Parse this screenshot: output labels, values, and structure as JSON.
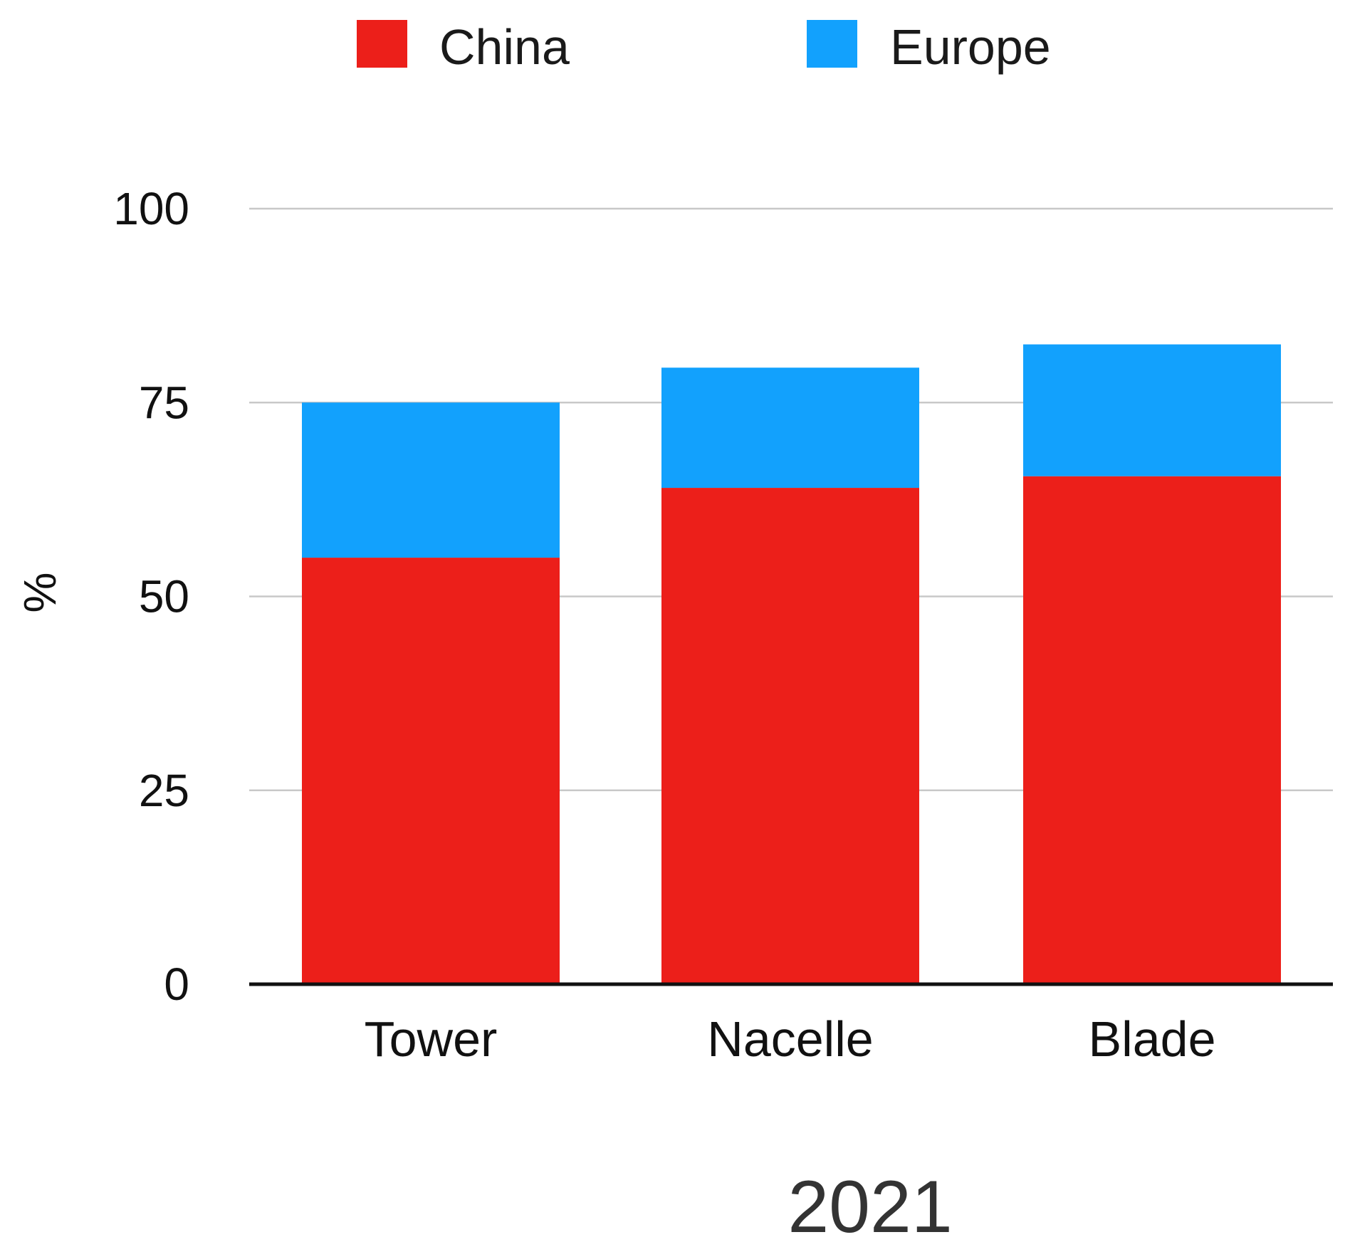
{
  "chart_data": {
    "type": "bar",
    "stacked": true,
    "categories": [
      "Tower",
      "Nacelle",
      "Blade"
    ],
    "series": [
      {
        "name": "China",
        "color": "#ec1f1a",
        "values": [
          55,
          64,
          65.5
        ]
      },
      {
        "name": "Europe",
        "color": "#12a1fd",
        "values": [
          20,
          15.5,
          17
        ]
      }
    ],
    "ylabel": "%",
    "xlabel": "2021",
    "ylim": [
      0,
      100
    ],
    "yticks": [
      "0",
      "25",
      "50",
      "75",
      "100"
    ],
    "grid": true,
    "legend_position": "top"
  }
}
